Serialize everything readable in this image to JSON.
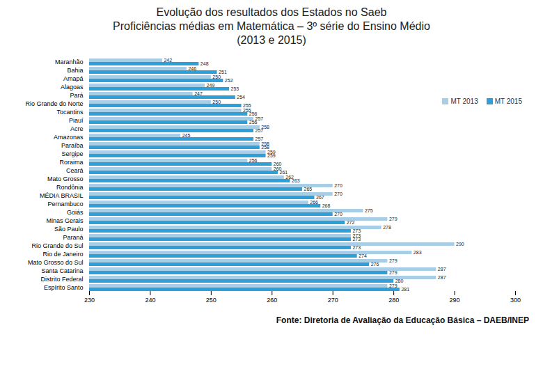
{
  "chart_data": {
    "type": "bar",
    "orientation": "horizontal",
    "title": "Evolução dos resultados dos Estados no Saeb",
    "subtitle": [
      "Proficiências médias em Matemática – 3º série do Ensino Médio",
      "(2013 e 2015)"
    ],
    "caption": "Fonte: Diretoria de Avaliação da Educação Básica – DAEB/INEP",
    "categories": [
      "Maranhão",
      "Bahia",
      "Amapá",
      "Alagoas",
      "Pará",
      "Rio Grande do Norte",
      "Tocantins",
      "Piauí",
      "Acre",
      "Amazonas",
      "Paraíba",
      "Sergipe",
      "Roraima",
      "Ceará",
      "Mato Grosso",
      "Rondônia",
      "MÉDIA BRASIL",
      "Pernambuco",
      "Goiás",
      "Minas Gerais",
      "São Paulo",
      "Paraná",
      "Rio Grande do Sul",
      "Rio de Janeiro",
      "Mato Grosso do Sul",
      "Santa Catarina",
      "Distrito Federal",
      "Espírito Santo"
    ],
    "series": [
      {
        "name": "MT 2013",
        "color": "#a8cde6",
        "values": [
          242,
          246,
          250,
          249,
          247,
          250,
          255,
          257,
          258,
          245,
          258,
          259,
          256,
          260,
          262,
          270,
          270,
          266,
          275,
          279,
          278,
          273,
          290,
          283,
          279,
          287,
          287,
          279
        ]
      },
      {
        "name": "MT 2015",
        "color": "#2f9fd8",
        "values": [
          248,
          251,
          252,
          253,
          254,
          255,
          256,
          256,
          257,
          257,
          258,
          259,
          260,
          261,
          263,
          265,
          267,
          268,
          270,
          272,
          273,
          273,
          273,
          274,
          276,
          279,
          280,
          281
        ]
      }
    ],
    "xlim": [
      230,
      300
    ],
    "xticks": [
      230,
      240,
      250,
      260,
      270,
      280,
      290,
      300
    ],
    "data_labels": true,
    "legend": "top-right",
    "grid": false
  }
}
